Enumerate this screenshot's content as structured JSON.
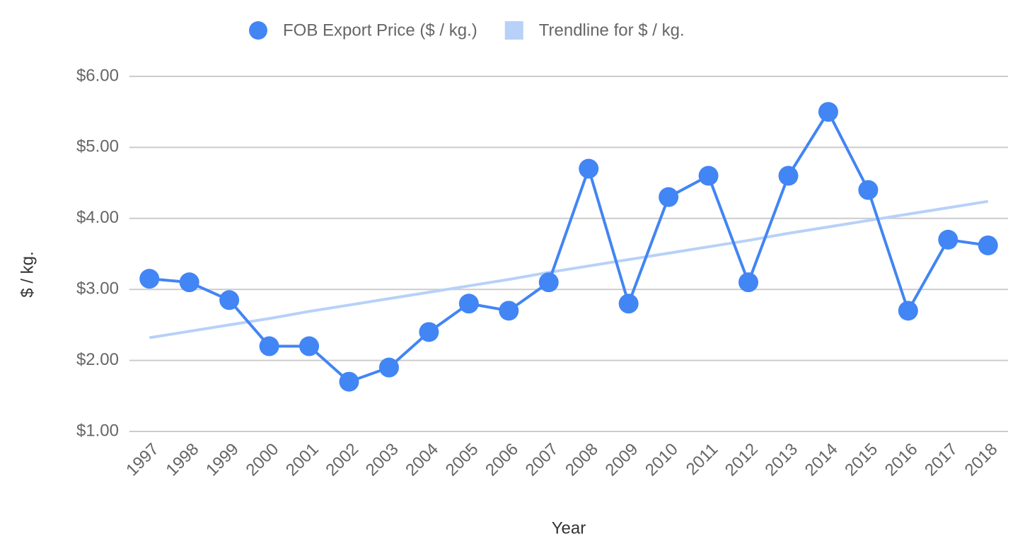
{
  "chart_data": {
    "type": "line",
    "y_label": "$ / kg.",
    "x_label": "Year",
    "categories": [
      "1997",
      "1998",
      "1999",
      "2000",
      "2001",
      "2002",
      "2003",
      "2004",
      "2005",
      "2006",
      "2007",
      "2008",
      "2009",
      "2010",
      "2011",
      "2012",
      "2013",
      "2014",
      "2015",
      "2016",
      "2017",
      "2018"
    ],
    "series": [
      {
        "name": "FOB Export Price ($ / kg.)",
        "color": "#4285f4",
        "markers": true,
        "values": [
          3.15,
          3.1,
          2.85,
          2.2,
          2.2,
          1.7,
          1.9,
          2.4,
          2.8,
          2.7,
          3.1,
          4.7,
          2.8,
          4.3,
          4.6,
          3.1,
          4.6,
          5.5,
          4.4,
          2.7,
          3.7,
          3.62
        ]
      },
      {
        "name": "Trendline for $ / kg.",
        "color": "#b7d1f8",
        "markers": false,
        "values": [
          2.32,
          2.41,
          2.5,
          2.59,
          2.69,
          2.78,
          2.87,
          2.96,
          3.05,
          3.14,
          3.24,
          3.33,
          3.42,
          3.51,
          3.6,
          3.69,
          3.79,
          3.88,
          3.97,
          4.06,
          4.15,
          4.24
        ]
      }
    ],
    "ylim": [
      1,
      6
    ],
    "yticks": [
      {
        "value": 1,
        "label": "$1.00"
      },
      {
        "value": 2,
        "label": "$2.00"
      },
      {
        "value": 3,
        "label": "$3.00"
      },
      {
        "value": 4,
        "label": "$4.00"
      },
      {
        "value": 5,
        "label": "$5.00"
      },
      {
        "value": 6,
        "label": "$6.00"
      }
    ],
    "grid": true,
    "legend": "top"
  }
}
